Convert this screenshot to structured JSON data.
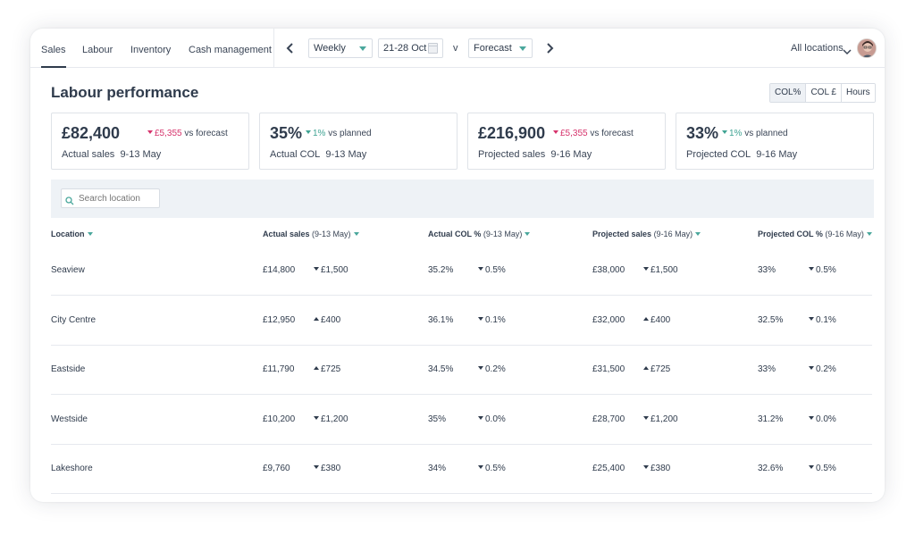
{
  "nav": {
    "tabs": [
      "Sales",
      "Labour",
      "Inventory",
      "Cash management"
    ],
    "active_tab": "Sales",
    "period": "Weekly",
    "date_range": "21-28 Oct",
    "vs_text": "v",
    "comparison": "Forecast",
    "location_selector": "All locations"
  },
  "header": {
    "title": "Labour performance",
    "toggles": [
      "COL%",
      "COL £",
      "Hours"
    ]
  },
  "kpis": [
    {
      "value": "£82,400",
      "delta": "£5,355",
      "delta_dir": "down",
      "delta_suffix": "vs forecast",
      "label": "Actual sales",
      "period": "9-13 May"
    },
    {
      "value": "35%",
      "delta": "1%",
      "delta_dir": "up",
      "delta_suffix": "vs planned",
      "label": "Actual COL",
      "period": "9-13 May"
    },
    {
      "value": "£216,900",
      "delta": "£5,355",
      "delta_dir": "down",
      "delta_suffix": "vs forecast",
      "label": "Projected sales",
      "period": "9-16 May"
    },
    {
      "value": "33%",
      "delta": "1%",
      "delta_dir": "up",
      "delta_suffix": "vs planned",
      "label": "Projected COL",
      "period": "9-16 May"
    }
  ],
  "search": {
    "placeholder": "Search location"
  },
  "table": {
    "columns": [
      {
        "label": "Location",
        "sub": ""
      },
      {
        "label": "Actual sales",
        "sub": "(9-13 May)"
      },
      {
        "label": "Actual COL %",
        "sub": "(9-13 May)"
      },
      {
        "label": "Projected sales",
        "sub": "(9-16 May)"
      },
      {
        "label": "Projected COL %",
        "sub": "(9-16 May)"
      }
    ],
    "rows": [
      {
        "location": "Seaview",
        "actual_sales": "£14,800",
        "actual_sales_delta": "£1,500",
        "actual_sales_dir": "down",
        "actual_col": "35.2%",
        "actual_col_delta": "0.5%",
        "actual_col_dir": "up",
        "projected_sales": "£38,000",
        "projected_sales_delta": "£1,500",
        "projected_sales_dir": "down",
        "projected_col": "33%",
        "projected_col_delta": "0.5%",
        "projected_col_dir": "up"
      },
      {
        "location": "City Centre",
        "actual_sales": "£12,950",
        "actual_sales_delta": "£400",
        "actual_sales_dir": "up",
        "actual_col": "36.1%",
        "actual_col_delta": "0.1%",
        "actual_col_dir": "down",
        "projected_sales": "£32,000",
        "projected_sales_delta": "£400",
        "projected_sales_dir": "up",
        "projected_col": "32.5%",
        "projected_col_delta": "0.1%",
        "projected_col_dir": "down"
      },
      {
        "location": "Eastside",
        "actual_sales": "£11,790",
        "actual_sales_delta": "£725",
        "actual_sales_dir": "up",
        "actual_col": "34.5%",
        "actual_col_delta": "0.2%",
        "actual_col_dir": "down",
        "projected_sales": "£31,500",
        "projected_sales_delta": "£725",
        "projected_sales_dir": "up",
        "projected_col": "33%",
        "projected_col_delta": "0.2%",
        "projected_col_dir": "down"
      },
      {
        "location": "Westside",
        "actual_sales": "£10,200",
        "actual_sales_delta": "£1,200",
        "actual_sales_dir": "down",
        "actual_col": "35%",
        "actual_col_delta": "0.0%",
        "actual_col_dir": "up",
        "projected_sales": "£28,700",
        "projected_sales_delta": "£1,200",
        "projected_sales_dir": "down",
        "projected_col": "31.2%",
        "projected_col_delta": "0.0%",
        "projected_col_dir": "up"
      },
      {
        "location": "Lakeshore",
        "actual_sales": "£9,760",
        "actual_sales_delta": "£380",
        "actual_sales_dir": "down",
        "actual_col": "34%",
        "actual_col_delta": "0.5%",
        "actual_col_dir": "up",
        "projected_sales": "£25,400",
        "projected_sales_delta": "£380",
        "projected_sales_dir": "down",
        "projected_col": "32.6%",
        "projected_col_delta": "0.5%",
        "projected_col_dir": "up"
      }
    ]
  },
  "colors": {
    "negative": "#d6336c",
    "positive": "#3fa393",
    "text": "#2f3b4c",
    "band": "#eef2f6"
  },
  "icons": [
    "chevron-left-icon",
    "chevron-right-icon",
    "calendar-icon",
    "chevron-down-icon",
    "search-icon",
    "avatar"
  ]
}
